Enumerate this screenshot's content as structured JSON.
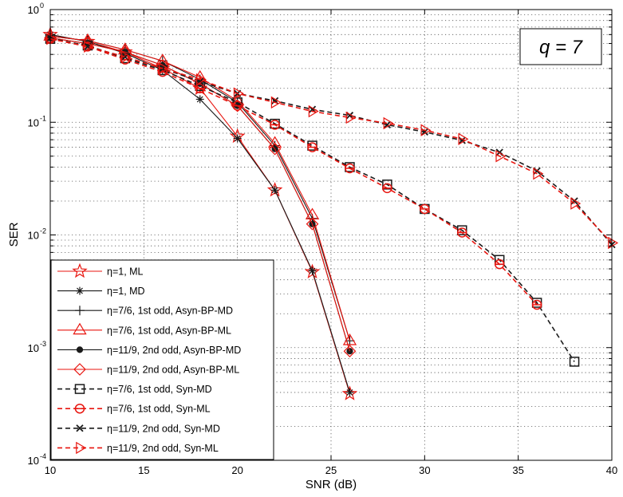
{
  "chart_data": {
    "type": "line",
    "xlabel": "SNR (dB)",
    "ylabel": "SER",
    "annotation": "q = 7",
    "xlim": [
      10,
      40
    ],
    "ylim": [
      0.0001,
      1
    ],
    "yscale": "log",
    "grid": true,
    "legend_position": "bottom-left",
    "xticks": [
      10,
      15,
      20,
      25,
      30,
      35,
      40
    ],
    "xtick_labels": [
      "10",
      "15",
      "20",
      "25",
      "30",
      "35",
      "40"
    ],
    "yticks": [
      0.0001,
      0.001,
      0.01,
      0.1,
      1
    ],
    "ytick_labels": [
      {
        "base": "10",
        "exp": "-4"
      },
      {
        "base": "10",
        "exp": "-3"
      },
      {
        "base": "10",
        "exp": "-2"
      },
      {
        "base": "10",
        "exp": "-1"
      },
      {
        "base": "10",
        "exp": "0"
      }
    ],
    "series": [
      {
        "name": "η=1, ML",
        "color": "#e8150f",
        "dash": "solid",
        "marker": "star",
        "x": [
          10,
          12,
          14,
          16,
          18,
          20,
          22,
          24,
          26
        ],
        "y": [
          0.6,
          0.52,
          0.42,
          0.3,
          0.2,
          0.075,
          0.025,
          0.0047,
          0.00039
        ]
      },
      {
        "name": "η=1, MD",
        "color": "#1a1a1a",
        "dash": "solid",
        "marker": "asterisk",
        "x": [
          10,
          12,
          14,
          16,
          18,
          20,
          22,
          24,
          26
        ],
        "y": [
          0.6,
          0.52,
          0.41,
          0.29,
          0.16,
          0.072,
          0.025,
          0.0048,
          0.0004
        ]
      },
      {
        "name": "η=7/6, 1st odd, Asyn-BP-MD",
        "color": "#1a1a1a",
        "dash": "solid",
        "marker": "plus",
        "x": [
          10,
          12,
          14,
          16,
          18,
          20,
          22,
          24,
          26
        ],
        "y": [
          0.58,
          0.53,
          0.44,
          0.35,
          0.24,
          0.15,
          0.062,
          0.014,
          0.00115
        ]
      },
      {
        "name": "η=7/6, 1st odd, Asyn-BP-ML",
        "color": "#e8150f",
        "dash": "solid",
        "marker": "triangle",
        "x": [
          10,
          12,
          14,
          16,
          18,
          20,
          22,
          24,
          26
        ],
        "y": [
          0.58,
          0.53,
          0.44,
          0.35,
          0.25,
          0.155,
          0.065,
          0.015,
          0.00115
        ]
      },
      {
        "name": "η=11/9, 2nd odd, Asyn-BP-MD",
        "color": "#1a1a1a",
        "dash": "solid",
        "marker": "dot",
        "x": [
          10,
          12,
          14,
          16,
          18,
          20,
          22,
          24,
          26
        ],
        "y": [
          0.56,
          0.5,
          0.42,
          0.32,
          0.22,
          0.14,
          0.058,
          0.0125,
          0.00093
        ]
      },
      {
        "name": "η=11/9, 2nd odd, Asyn-BP-ML",
        "color": "#e8150f",
        "dash": "solid",
        "marker": "diamond",
        "x": [
          10,
          12,
          14,
          16,
          18,
          20,
          22,
          24,
          26
        ],
        "y": [
          0.56,
          0.5,
          0.42,
          0.32,
          0.22,
          0.14,
          0.058,
          0.0125,
          0.00093
        ]
      },
      {
        "name": "η=7/6, 1st odd, Syn-MD",
        "color": "#1a1a1a",
        "dash": "dashed",
        "marker": "square",
        "x": [
          10,
          12,
          14,
          16,
          18,
          20,
          22,
          24,
          26,
          28,
          30,
          32,
          34,
          36,
          38
        ],
        "y": [
          0.55,
          0.48,
          0.37,
          0.29,
          0.21,
          0.15,
          0.097,
          0.062,
          0.04,
          0.028,
          0.017,
          0.011,
          0.006,
          0.0025,
          0.00075
        ]
      },
      {
        "name": "η=7/6, 1st odd, Syn-ML",
        "color": "#e8150f",
        "dash": "dashed",
        "marker": "circle-bar",
        "x": [
          10,
          12,
          14,
          16,
          18,
          20,
          22,
          24,
          26,
          28,
          30,
          32,
          34,
          36
        ],
        "y": [
          0.55,
          0.47,
          0.36,
          0.28,
          0.2,
          0.14,
          0.095,
          0.06,
          0.039,
          0.026,
          0.017,
          0.0105,
          0.0055,
          0.0024
        ]
      },
      {
        "name": "η=11/9, 2nd odd, Syn-MD",
        "color": "#1a1a1a",
        "dash": "dashed",
        "marker": "cross",
        "x": [
          10,
          12,
          14,
          16,
          18,
          20,
          22,
          24,
          26,
          28,
          30,
          32,
          34,
          36,
          38,
          40
        ],
        "y": [
          0.56,
          0.47,
          0.38,
          0.3,
          0.23,
          0.18,
          0.155,
          0.13,
          0.115,
          0.095,
          0.082,
          0.069,
          0.054,
          0.037,
          0.02,
          0.0082
        ]
      },
      {
        "name": "η=11/9, 2nd odd, Syn-ML",
        "color": "#e8150f",
        "dash": "dashed",
        "marker": "triangle-right",
        "x": [
          10,
          12,
          14,
          16,
          18,
          20,
          22,
          24,
          26,
          28,
          30,
          32,
          34,
          36,
          38,
          40
        ],
        "y": [
          0.55,
          0.47,
          0.38,
          0.3,
          0.24,
          0.18,
          0.15,
          0.125,
          0.11,
          0.098,
          0.085,
          0.071,
          0.05,
          0.035,
          0.019,
          0.0085
        ]
      }
    ]
  }
}
